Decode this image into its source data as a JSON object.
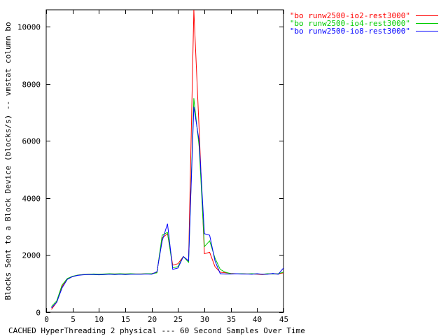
{
  "chart_data": {
    "type": "line",
    "title": "",
    "xlabel": "CACHED HyperThreading 2 physical --- 60 Second Samples Over Time",
    "ylabel": "Blocks Sent to a Block Device (blocks/s) -- vmstat column bo",
    "xlim": [
      0,
      45
    ],
    "ylim": [
      0,
      10600
    ],
    "x_ticks": [
      0,
      5,
      10,
      15,
      20,
      25,
      30,
      35,
      40,
      45
    ],
    "y_ticks": [
      0,
      2000,
      4000,
      6000,
      8000,
      10000
    ],
    "grid": false,
    "legend_position": "top-right",
    "series": [
      {
        "name": "\"bo runw2500-io2-rest3000\"",
        "color": "#ff0000",
        "x": [
          1,
          2,
          3,
          4,
          5,
          6,
          7,
          8,
          9,
          10,
          11,
          12,
          13,
          14,
          15,
          16,
          17,
          18,
          19,
          20,
          21,
          22,
          23,
          24,
          25,
          26,
          27,
          28,
          29,
          30,
          31,
          32,
          33,
          34,
          35,
          36,
          37,
          38,
          39,
          40,
          41,
          42,
          43,
          44,
          45
        ],
        "y": [
          100,
          350,
          900,
          1150,
          1250,
          1300,
          1320,
          1330,
          1330,
          1320,
          1330,
          1340,
          1340,
          1340,
          1340,
          1340,
          1340,
          1340,
          1350,
          1350,
          1400,
          2600,
          2750,
          1650,
          1700,
          1950,
          1800,
          10600,
          6400,
          2050,
          2100,
          1600,
          1400,
          1380,
          1360,
          1350,
          1350,
          1340,
          1340,
          1330,
          1320,
          1340,
          1350,
          1340,
          1380
        ]
      },
      {
        "name": "\"bo runw2500-io4-rest3000\"",
        "color": "#00cc00",
        "x": [
          1,
          2,
          3,
          4,
          5,
          6,
          7,
          8,
          9,
          10,
          11,
          12,
          13,
          14,
          15,
          16,
          17,
          18,
          19,
          20,
          21,
          22,
          23,
          24,
          25,
          26,
          27,
          28,
          29,
          30,
          31,
          32,
          33,
          34,
          35,
          36,
          37,
          38,
          39,
          40,
          41,
          42,
          43,
          44,
          45
        ],
        "y": [
          200,
          400,
          950,
          1180,
          1260,
          1300,
          1320,
          1330,
          1340,
          1330,
          1340,
          1350,
          1340,
          1350,
          1340,
          1350,
          1340,
          1340,
          1350,
          1350,
          1380,
          2700,
          2800,
          1550,
          1600,
          1950,
          1750,
          7500,
          5800,
          2300,
          2500,
          1900,
          1500,
          1400,
          1350,
          1350,
          1350,
          1340,
          1350,
          1340,
          1330,
          1350,
          1340,
          1350,
          1400
        ]
      },
      {
        "name": "\"bo runw2500-io8-rest3000\"",
        "color": "#0000ff",
        "x": [
          1,
          2,
          3,
          4,
          5,
          6,
          7,
          8,
          9,
          10,
          11,
          12,
          13,
          14,
          15,
          16,
          17,
          18,
          19,
          20,
          21,
          22,
          23,
          24,
          25,
          26,
          27,
          28,
          29,
          30,
          31,
          32,
          33,
          34,
          35,
          36,
          37,
          38,
          39,
          40,
          41,
          42,
          43,
          44,
          45
        ],
        "y": [
          150,
          350,
          850,
          1150,
          1250,
          1290,
          1310,
          1320,
          1320,
          1310,
          1320,
          1330,
          1320,
          1330,
          1320,
          1330,
          1330,
          1330,
          1340,
          1330,
          1420,
          2500,
          3100,
          1500,
          1550,
          1950,
          1800,
          7200,
          6000,
          2750,
          2700,
          1800,
          1350,
          1340,
          1340,
          1350,
          1340,
          1340,
          1330,
          1350,
          1330,
          1330,
          1360,
          1330,
          1550
        ]
      }
    ]
  }
}
